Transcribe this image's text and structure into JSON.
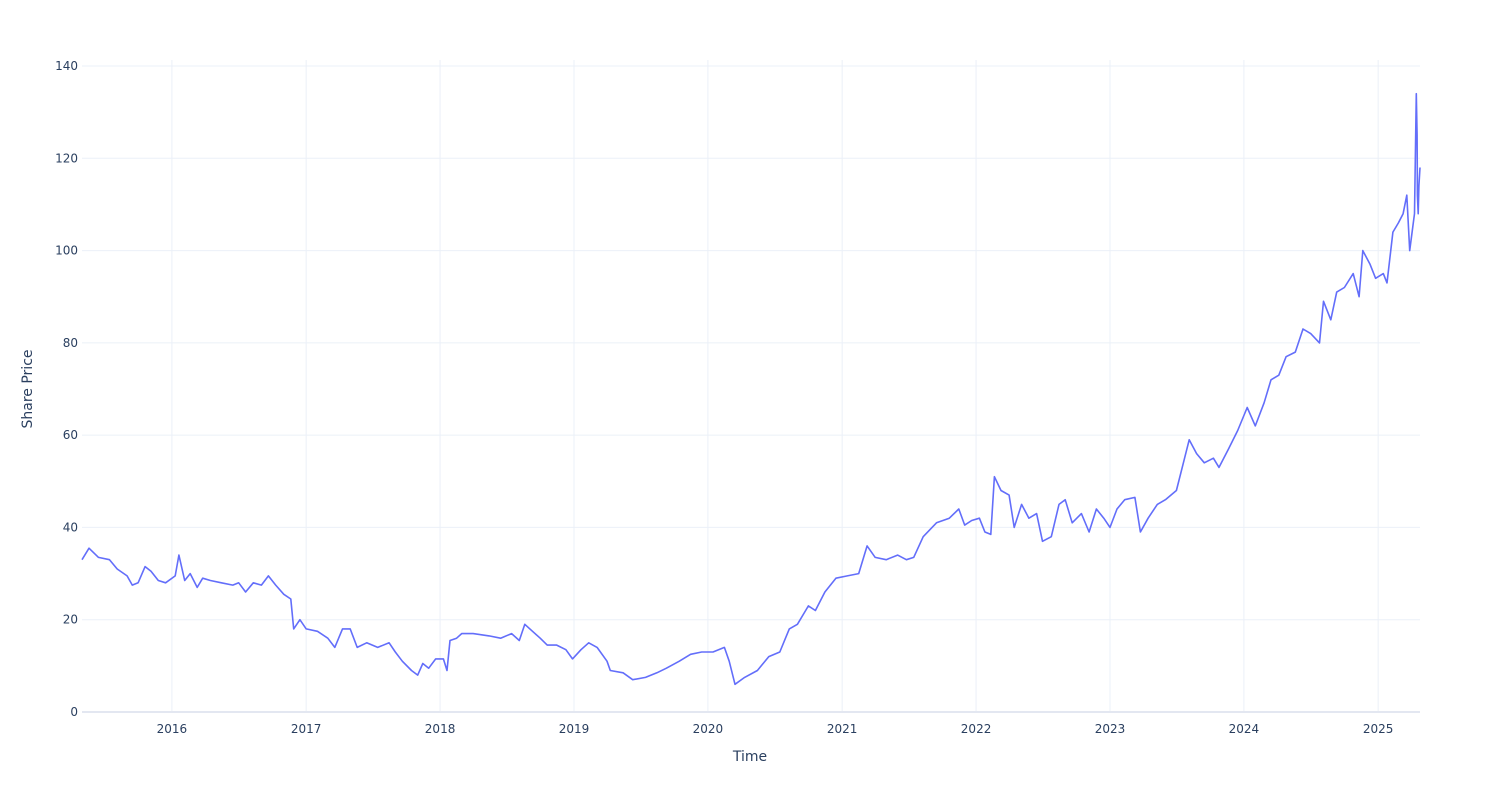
{
  "chart_data": {
    "type": "line",
    "title": "",
    "xlabel": "Time",
    "ylabel": "Share Price",
    "xlim": [
      "2015-05-01",
      "2025-04-25"
    ],
    "ylim": [
      0,
      140
    ],
    "grid": true,
    "legend": "none",
    "colors": {
      "line": "#636efa",
      "grid": "#ebf0f8",
      "zeroline": "#e3e7f1",
      "text": "#2a3f5f"
    },
    "x_ticks": [
      {
        "date": "2016-01-01",
        "label": "2016"
      },
      {
        "date": "2017-01-01",
        "label": "2017"
      },
      {
        "date": "2018-01-01",
        "label": "2018"
      },
      {
        "date": "2019-01-01",
        "label": "2019"
      },
      {
        "date": "2020-01-01",
        "label": "2020"
      },
      {
        "date": "2021-01-01",
        "label": "2021"
      },
      {
        "date": "2022-01-01",
        "label": "2022"
      },
      {
        "date": "2023-01-01",
        "label": "2023"
      },
      {
        "date": "2024-01-01",
        "label": "2024"
      },
      {
        "date": "2025-01-01",
        "label": "2025"
      }
    ],
    "y_ticks": [
      {
        "value": 0,
        "label": "0"
      },
      {
        "value": 20,
        "label": "20"
      },
      {
        "value": 40,
        "label": "40"
      },
      {
        "value": 60,
        "label": "60"
      },
      {
        "value": 80,
        "label": "80"
      },
      {
        "value": 100,
        "label": "100"
      },
      {
        "value": 120,
        "label": "120"
      },
      {
        "value": 140,
        "label": "140"
      }
    ],
    "series": [
      {
        "points": [
          [
            "2015-05-01",
            33
          ],
          [
            "2015-05-20",
            35.5
          ],
          [
            "2015-06-15",
            33.5
          ],
          [
            "2015-07-15",
            33
          ],
          [
            "2015-08-05",
            31
          ],
          [
            "2015-09-01",
            29.5
          ],
          [
            "2015-09-15",
            27.5
          ],
          [
            "2015-10-01",
            28
          ],
          [
            "2015-10-20",
            31.5
          ],
          [
            "2015-11-05",
            30.5
          ],
          [
            "2015-11-25",
            28.5
          ],
          [
            "2015-12-15",
            28
          ],
          [
            "2016-01-10",
            29.5
          ],
          [
            "2016-01-20",
            34
          ],
          [
            "2016-02-05",
            28.5
          ],
          [
            "2016-02-20",
            30
          ],
          [
            "2016-03-10",
            27
          ],
          [
            "2016-03-25",
            29
          ],
          [
            "2016-04-15",
            28.5
          ],
          [
            "2016-05-15",
            28
          ],
          [
            "2016-06-15",
            27.5
          ],
          [
            "2016-07-01",
            28
          ],
          [
            "2016-07-20",
            26
          ],
          [
            "2016-08-10",
            28
          ],
          [
            "2016-09-01",
            27.5
          ],
          [
            "2016-09-20",
            29.5
          ],
          [
            "2016-10-10",
            27.5
          ],
          [
            "2016-11-01",
            25.5
          ],
          [
            "2016-11-20",
            24.5
          ],
          [
            "2016-11-28",
            18
          ],
          [
            "2016-12-15",
            20
          ],
          [
            "2017-01-01",
            18
          ],
          [
            "2017-02-01",
            17.5
          ],
          [
            "2017-03-01",
            16
          ],
          [
            "2017-03-20",
            14
          ],
          [
            "2017-04-10",
            18
          ],
          [
            "2017-05-01",
            18
          ],
          [
            "2017-05-20",
            14
          ],
          [
            "2017-06-15",
            15
          ],
          [
            "2017-07-15",
            14
          ],
          [
            "2017-08-15",
            15
          ],
          [
            "2017-09-01",
            13
          ],
          [
            "2017-09-20",
            11
          ],
          [
            "2017-10-15",
            9
          ],
          [
            "2017-11-01",
            8
          ],
          [
            "2017-11-15",
            10.5
          ],
          [
            "2017-12-01",
            9.5
          ],
          [
            "2017-12-20",
            11.5
          ],
          [
            "2018-01-10",
            11.5
          ],
          [
            "2018-01-20",
            9
          ],
          [
            "2018-01-28",
            15.5
          ],
          [
            "2018-02-15",
            16
          ],
          [
            "2018-03-01",
            17
          ],
          [
            "2018-04-01",
            17
          ],
          [
            "2018-05-15",
            16.5
          ],
          [
            "2018-06-15",
            16
          ],
          [
            "2018-07-15",
            17
          ],
          [
            "2018-08-05",
            15.5
          ],
          [
            "2018-08-20",
            19
          ],
          [
            "2018-09-10",
            17.5
          ],
          [
            "2018-10-01",
            16
          ],
          [
            "2018-10-20",
            14.5
          ],
          [
            "2018-11-15",
            14.5
          ],
          [
            "2018-12-10",
            13.5
          ],
          [
            "2018-12-28",
            11.5
          ],
          [
            "2019-01-20",
            13.5
          ],
          [
            "2019-02-10",
            15
          ],
          [
            "2019-03-05",
            14
          ],
          [
            "2019-04-01",
            11
          ],
          [
            "2019-04-10",
            9
          ],
          [
            "2019-05-15",
            8.5
          ],
          [
            "2019-06-10",
            7
          ],
          [
            "2019-07-15",
            7.5
          ],
          [
            "2019-08-15",
            8.5
          ],
          [
            "2019-09-10",
            9.5
          ],
          [
            "2019-10-15",
            11
          ],
          [
            "2019-11-15",
            12.5
          ],
          [
            "2019-12-15",
            13
          ],
          [
            "2020-01-15",
            13
          ],
          [
            "2020-02-15",
            14
          ],
          [
            "2020-02-28",
            11
          ],
          [
            "2020-03-15",
            6
          ],
          [
            "2020-04-10",
            7.5
          ],
          [
            "2020-05-15",
            9
          ],
          [
            "2020-06-15",
            12
          ],
          [
            "2020-07-15",
            13
          ],
          [
            "2020-08-10",
            18
          ],
          [
            "2020-09-01",
            19
          ],
          [
            "2020-10-01",
            23
          ],
          [
            "2020-10-20",
            22
          ],
          [
            "2020-11-15",
            26
          ],
          [
            "2020-12-15",
            29
          ],
          [
            "2021-01-15",
            29.5
          ],
          [
            "2021-02-15",
            30
          ],
          [
            "2021-03-10",
            36
          ],
          [
            "2021-04-01",
            33.5
          ],
          [
            "2021-05-01",
            33
          ],
          [
            "2021-06-01",
            34
          ],
          [
            "2021-06-25",
            33
          ],
          [
            "2021-07-15",
            33.5
          ],
          [
            "2021-08-10",
            38
          ],
          [
            "2021-09-15",
            41
          ],
          [
            "2021-10-20",
            42
          ],
          [
            "2021-11-15",
            44
          ],
          [
            "2021-12-01",
            40.5
          ],
          [
            "2021-12-20",
            41.5
          ],
          [
            "2022-01-10",
            42
          ],
          [
            "2022-01-25",
            39
          ],
          [
            "2022-02-10",
            38.5
          ],
          [
            "2022-02-20",
            51
          ],
          [
            "2022-03-10",
            48
          ],
          [
            "2022-04-01",
            47
          ],
          [
            "2022-04-15",
            40
          ],
          [
            "2022-05-05",
            45
          ],
          [
            "2022-05-25",
            42
          ],
          [
            "2022-06-15",
            43
          ],
          [
            "2022-07-01",
            37
          ],
          [
            "2022-07-25",
            38
          ],
          [
            "2022-08-15",
            45
          ],
          [
            "2022-09-01",
            46
          ],
          [
            "2022-09-20",
            41
          ],
          [
            "2022-10-15",
            43
          ],
          [
            "2022-11-05",
            39
          ],
          [
            "2022-11-25",
            44
          ],
          [
            "2022-12-15",
            42
          ],
          [
            "2023-01-01",
            40
          ],
          [
            "2023-01-20",
            44
          ],
          [
            "2023-02-10",
            46
          ],
          [
            "2023-03-10",
            46.5
          ],
          [
            "2023-03-25",
            39
          ],
          [
            "2023-04-15",
            42
          ],
          [
            "2023-05-10",
            45
          ],
          [
            "2023-06-01",
            46
          ],
          [
            "2023-07-01",
            48
          ],
          [
            "2023-07-20",
            54
          ],
          [
            "2023-08-05",
            59
          ],
          [
            "2023-08-25",
            56
          ],
          [
            "2023-09-15",
            54
          ],
          [
            "2023-10-10",
            55
          ],
          [
            "2023-10-25",
            53
          ],
          [
            "2023-11-20",
            57
          ],
          [
            "2023-12-15",
            61
          ],
          [
            "2024-01-10",
            66
          ],
          [
            "2024-02-01",
            62
          ],
          [
            "2024-02-25",
            67
          ],
          [
            "2024-03-15",
            72
          ],
          [
            "2024-04-05",
            73
          ],
          [
            "2024-04-25",
            77
          ],
          [
            "2024-05-20",
            78
          ],
          [
            "2024-06-10",
            83
          ],
          [
            "2024-07-01",
            82
          ],
          [
            "2024-07-25",
            80
          ],
          [
            "2024-08-05",
            89
          ],
          [
            "2024-08-25",
            85
          ],
          [
            "2024-09-10",
            91
          ],
          [
            "2024-10-01",
            92
          ],
          [
            "2024-10-25",
            95
          ],
          [
            "2024-11-10",
            90
          ],
          [
            "2024-11-20",
            100
          ],
          [
            "2024-12-10",
            97
          ],
          [
            "2024-12-25",
            94
          ],
          [
            "2025-01-15",
            95
          ],
          [
            "2025-01-25",
            93
          ],
          [
            "2025-02-10",
            104
          ],
          [
            "2025-02-25",
            106
          ],
          [
            "2025-03-10",
            108
          ],
          [
            "2025-03-20",
            112
          ],
          [
            "2025-03-28",
            100
          ],
          [
            "2025-04-05",
            105
          ],
          [
            "2025-04-10",
            108
          ],
          [
            "2025-04-15",
            134
          ],
          [
            "2025-04-17",
            125
          ],
          [
            "2025-04-18",
            112
          ],
          [
            "2025-04-20",
            108
          ],
          [
            "2025-04-22",
            114
          ],
          [
            "2025-04-25",
            118
          ]
        ]
      }
    ]
  }
}
